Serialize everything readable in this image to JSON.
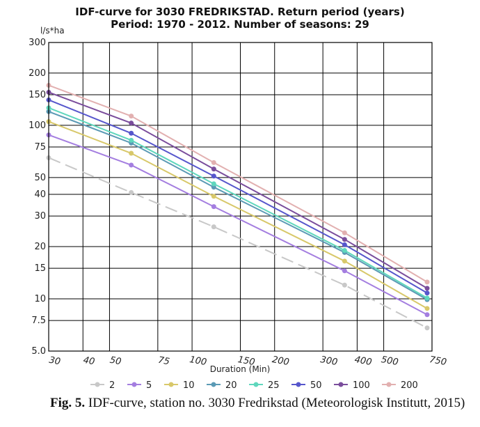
{
  "chart_data": {
    "type": "line",
    "title": "IDF-curve for 3030 FREDRIKSTAD. Return period (years)",
    "subtitle": "Period: 1970 - 2012. Number of seasons: 29",
    "xlabel": "Duration (Min)",
    "ylabel": "l/s*ha",
    "x_scale": "log",
    "y_scale": "log",
    "xlim": [
      30,
      750
    ],
    "ylim": [
      5,
      300
    ],
    "x_ticks": [
      30,
      40,
      50,
      75,
      100,
      150,
      200,
      300,
      400,
      500,
      750
    ],
    "x_tick_labels": [
      "30",
      "40",
      "50",
      "75",
      "100",
      "150",
      "200",
      "300",
      "400",
      "500",
      "750"
    ],
    "y_ticks": [
      5,
      7.5,
      10,
      15,
      20,
      30,
      40,
      50,
      75,
      100,
      150,
      200,
      300
    ],
    "y_tick_labels": [
      "5.0",
      "7.5",
      "10",
      "15",
      "20",
      "30",
      "40",
      "50",
      "75",
      "100",
      "150",
      "200",
      "300"
    ],
    "grid": true,
    "legend_position": "bottom",
    "x": [
      30,
      60,
      120,
      360,
      720
    ],
    "series": [
      {
        "name": "2",
        "color": "#c8c8c8",
        "dashed": true,
        "values": [
          65,
          41,
          26,
          12,
          6.8
        ]
      },
      {
        "name": "5",
        "color": "#a47ee0",
        "dashed": false,
        "values": [
          88,
          59,
          34,
          14.5,
          8.1
        ]
      },
      {
        "name": "10",
        "color": "#d8c86a",
        "dashed": false,
        "values": [
          105,
          69,
          39,
          16.5,
          8.8
        ]
      },
      {
        "name": "20",
        "color": "#5b9ab5",
        "dashed": false,
        "values": [
          120,
          79,
          44,
          18.5,
          9.9
        ]
      },
      {
        "name": "25",
        "color": "#5fd7bd",
        "dashed": false,
        "values": [
          126,
          82,
          46,
          19,
          10.1
        ]
      },
      {
        "name": "50",
        "color": "#5656cc",
        "dashed": false,
        "values": [
          140,
          90,
          51,
          20.5,
          10.8
        ]
      },
      {
        "name": "100",
        "color": "#7a4d9c",
        "dashed": false,
        "values": [
          155,
          103,
          56,
          22,
          11.5
        ]
      },
      {
        "name": "200",
        "color": "#e2b0b0",
        "dashed": false,
        "values": [
          170,
          113,
          61,
          24,
          12.5
        ]
      }
    ]
  },
  "caption": {
    "label": "Fig. 5.",
    "text": " IDF-curve, station no. 3030 Fredrikstad (Meteorologisk Institutt, 2015)"
  }
}
